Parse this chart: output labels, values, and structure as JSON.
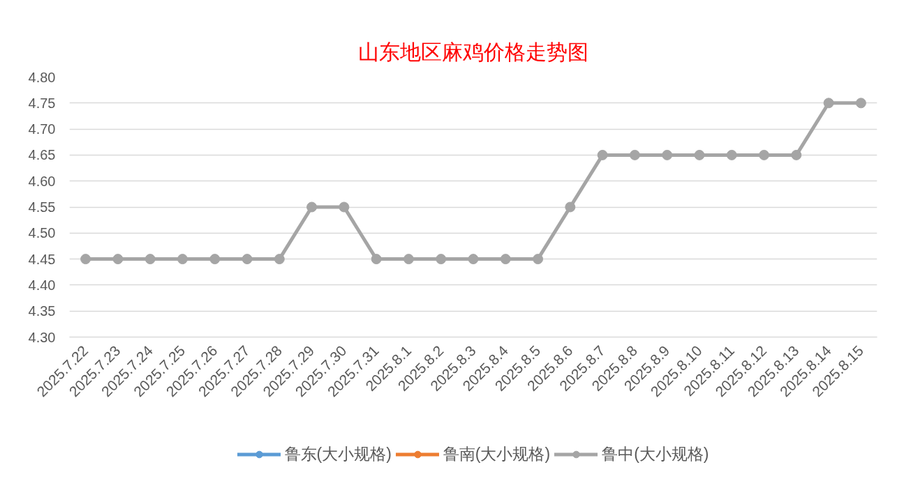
{
  "chart_data": {
    "type": "line",
    "title": "山东地区麻鸡价格走势图",
    "categories": [
      "2025.7.22",
      "2025.7.23",
      "2025.7.24",
      "2025.7.25",
      "2025.7.26",
      "2025.7.27",
      "2025.7.28",
      "2025.7.29",
      "2025.7.30",
      "2025.7.31",
      "2025.8.1",
      "2025.8.2",
      "2025.8.3",
      "2025.8.4",
      "2025.8.5",
      "2025.8.6",
      "2025.8.7",
      "2025.8.8",
      "2025.8.9",
      "2025.8.10",
      "2025.8.11",
      "2025.8.12",
      "2025.8.13",
      "2025.8.14",
      "2025.8.15"
    ],
    "series": [
      {
        "name": "鲁东(大小规格)",
        "color": "#5b9bd5",
        "values": [
          null,
          null,
          null,
          null,
          null,
          null,
          null,
          null,
          null,
          null,
          null,
          null,
          null,
          null,
          null,
          null,
          null,
          null,
          null,
          null,
          null,
          null,
          null,
          null,
          null
        ]
      },
      {
        "name": "鲁南(大小规格)",
        "color": "#ed7d31",
        "values": [
          null,
          null,
          null,
          null,
          null,
          null,
          null,
          null,
          null,
          null,
          null,
          null,
          null,
          null,
          null,
          null,
          null,
          null,
          null,
          null,
          null,
          null,
          null,
          null,
          null
        ]
      },
      {
        "name": "鲁中(大小规格)",
        "color": "#a5a5a5",
        "values": [
          4.45,
          4.45,
          4.45,
          4.45,
          4.45,
          4.45,
          4.45,
          4.55,
          4.55,
          4.45,
          4.45,
          4.45,
          4.45,
          4.45,
          4.45,
          4.55,
          4.65,
          4.65,
          4.65,
          4.65,
          4.65,
          4.65,
          4.65,
          4.75,
          4.75
        ]
      }
    ],
    "ylim": [
      4.3,
      4.8
    ],
    "yticks": [
      {
        "value": 4.3,
        "label": "4.30"
      },
      {
        "value": 4.35,
        "label": "4.35"
      },
      {
        "value": 4.4,
        "label": "4.40"
      },
      {
        "value": 4.45,
        "label": "4.45"
      },
      {
        "value": 4.5,
        "label": "4.50"
      },
      {
        "value": 4.55,
        "label": "4.55"
      },
      {
        "value": 4.6,
        "label": "4.60"
      },
      {
        "value": 4.65,
        "label": "4.65"
      },
      {
        "value": 4.7,
        "label": "4.70"
      },
      {
        "value": 4.75,
        "label": "4.75"
      },
      {
        "value": 4.8,
        "label": "4.80"
      }
    ],
    "grid": "y",
    "legend": "bottom",
    "marker": "circle",
    "line_style": "solid"
  }
}
